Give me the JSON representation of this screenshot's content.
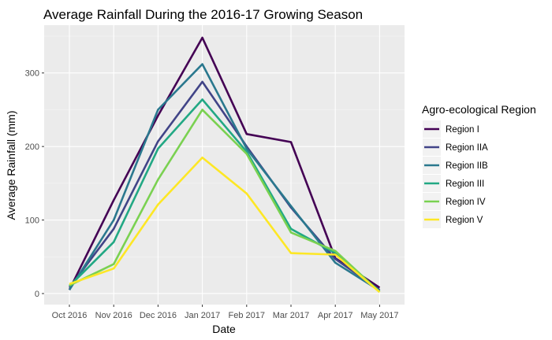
{
  "chart_data": {
    "type": "line",
    "title": "Average Rainfall During the 2016-17 Growing Season",
    "xlabel": "Date",
    "ylabel": "Average Rainfall (mm)",
    "x": [
      "Oct 2016",
      "Nov 2016",
      "Dec 2016",
      "Jan 2017",
      "Feb 2017",
      "Mar 2017",
      "Apr 2017",
      "May 2017"
    ],
    "y_ticks": [
      0,
      100,
      200,
      300
    ],
    "ylim": [
      -15,
      365
    ],
    "grid": true,
    "legend": {
      "title": "Agro-ecological Region",
      "position": "right"
    },
    "series": [
      {
        "name": "Region I",
        "color": "#440154",
        "values": [
          5,
          127,
          242,
          348,
          217,
          206,
          48,
          8
        ]
      },
      {
        "name": "Region IIA",
        "color": "#414487",
        "values": [
          8,
          88,
          207,
          288,
          200,
          117,
          47,
          5
        ]
      },
      {
        "name": "Region IIB",
        "color": "#2a788e",
        "values": [
          5,
          100,
          250,
          312,
          197,
          119,
          42,
          4
        ]
      },
      {
        "name": "Region III",
        "color": "#22a884",
        "values": [
          10,
          70,
          197,
          264,
          193,
          88,
          55,
          3
        ]
      },
      {
        "name": "Region IV",
        "color": "#7ad151",
        "values": [
          11,
          40,
          155,
          250,
          190,
          83,
          58,
          2
        ]
      },
      {
        "name": "Region V",
        "color": "#fde725",
        "values": [
          13,
          34,
          121,
          185,
          136,
          55,
          53,
          2
        ]
      }
    ]
  }
}
